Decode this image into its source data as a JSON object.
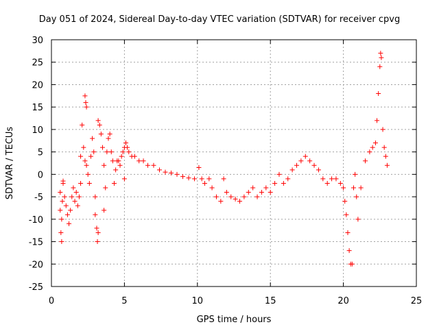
{
  "chart_data": {
    "type": "scatter",
    "title": "Day 051 of 2024, Sidereal Day-to-day VTEC variation (SDTVAR) for receiver cpvg",
    "xlabel": "GPS time / hours",
    "ylabel": "SDTVAR / TECUs",
    "xlim": [
      0,
      25
    ],
    "ylim": [
      -25,
      30
    ],
    "xticks": [
      0,
      5,
      10,
      15,
      20,
      25
    ],
    "yticks": [
      -25,
      -20,
      -15,
      -10,
      -5,
      0,
      5,
      10,
      15,
      20,
      25,
      30
    ],
    "grid": true,
    "marker": "+",
    "color": "#ff0000",
    "series": [
      {
        "name": "SDTVAR cpvg",
        "points": [
          [
            0.6,
            -4
          ],
          [
            0.6,
            -8
          ],
          [
            0.65,
            -13
          ],
          [
            0.7,
            -15
          ],
          [
            0.7,
            -10
          ],
          [
            0.75,
            -6
          ],
          [
            0.8,
            -2
          ],
          [
            0.8,
            -1.5
          ],
          [
            0.9,
            -5
          ],
          [
            1.0,
            -7
          ],
          [
            1.1,
            -9
          ],
          [
            1.2,
            -11
          ],
          [
            1.3,
            -8
          ],
          [
            1.4,
            -5
          ],
          [
            1.5,
            -3
          ],
          [
            1.6,
            -6
          ],
          [
            1.7,
            -4
          ],
          [
            1.8,
            -7
          ],
          [
            1.9,
            -5
          ],
          [
            2.0,
            -2
          ],
          [
            2.0,
            4
          ],
          [
            2.1,
            11
          ],
          [
            2.2,
            6
          ],
          [
            2.3,
            3
          ],
          [
            2.3,
            17.5
          ],
          [
            2.35,
            16
          ],
          [
            2.4,
            15
          ],
          [
            2.4,
            2
          ],
          [
            2.5,
            0
          ],
          [
            2.6,
            -2
          ],
          [
            2.7,
            4
          ],
          [
            2.8,
            8
          ],
          [
            2.9,
            5
          ],
          [
            3.0,
            -5
          ],
          [
            3.0,
            -9
          ],
          [
            3.1,
            -12
          ],
          [
            3.15,
            -15
          ],
          [
            3.2,
            -13
          ],
          [
            3.2,
            12
          ],
          [
            3.3,
            11
          ],
          [
            3.4,
            9
          ],
          [
            3.5,
            6
          ],
          [
            3.6,
            2
          ],
          [
            3.6,
            -8
          ],
          [
            3.7,
            -3
          ],
          [
            3.8,
            5
          ],
          [
            3.9,
            8
          ],
          [
            4.0,
            9
          ],
          [
            4.1,
            5
          ],
          [
            4.2,
            3
          ],
          [
            4.3,
            -2
          ],
          [
            4.4,
            1
          ],
          [
            4.5,
            3
          ],
          [
            4.6,
            3
          ],
          [
            4.7,
            2
          ],
          [
            4.8,
            4
          ],
          [
            4.9,
            5
          ],
          [
            5.0,
            6
          ],
          [
            5.0,
            -1
          ],
          [
            5.1,
            7
          ],
          [
            5.2,
            6
          ],
          [
            5.3,
            5
          ],
          [
            5.5,
            4
          ],
          [
            5.7,
            4
          ],
          [
            6.0,
            3
          ],
          [
            6.3,
            3
          ],
          [
            6.6,
            2
          ],
          [
            7.0,
            2
          ],
          [
            7.4,
            1
          ],
          [
            7.8,
            0.5
          ],
          [
            8.2,
            0.3
          ],
          [
            8.6,
            0
          ],
          [
            9.0,
            -0.5
          ],
          [
            9.4,
            -0.8
          ],
          [
            9.8,
            -1
          ],
          [
            10.1,
            1.5
          ],
          [
            10.3,
            -1
          ],
          [
            10.5,
            -2
          ],
          [
            10.8,
            -1
          ],
          [
            11.0,
            -3
          ],
          [
            11.3,
            -5
          ],
          [
            11.6,
            -6
          ],
          [
            11.8,
            -1
          ],
          [
            12.0,
            -4
          ],
          [
            12.3,
            -5
          ],
          [
            12.6,
            -5.5
          ],
          [
            12.9,
            -6
          ],
          [
            13.2,
            -5
          ],
          [
            13.5,
            -4
          ],
          [
            13.8,
            -3
          ],
          [
            14.1,
            -5
          ],
          [
            14.4,
            -4
          ],
          [
            14.7,
            -3
          ],
          [
            15.0,
            -4
          ],
          [
            15.3,
            -2
          ],
          [
            15.6,
            0
          ],
          [
            15.9,
            -2
          ],
          [
            16.2,
            -1
          ],
          [
            16.5,
            1
          ],
          [
            16.8,
            2
          ],
          [
            17.1,
            3
          ],
          [
            17.4,
            4
          ],
          [
            17.7,
            3
          ],
          [
            18.0,
            2
          ],
          [
            18.3,
            1
          ],
          [
            18.6,
            -1
          ],
          [
            18.9,
            -2
          ],
          [
            19.2,
            -1
          ],
          [
            19.5,
            -1
          ],
          [
            19.8,
            -2
          ],
          [
            20.0,
            -3
          ],
          [
            20.1,
            -6
          ],
          [
            20.2,
            -9
          ],
          [
            20.3,
            -13
          ],
          [
            20.4,
            -17
          ],
          [
            20.5,
            -20
          ],
          [
            20.6,
            -20
          ],
          [
            20.7,
            -3
          ],
          [
            20.8,
            0
          ],
          [
            20.9,
            -5
          ],
          [
            21.0,
            -10
          ],
          [
            21.2,
            -3
          ],
          [
            21.5,
            3
          ],
          [
            21.8,
            5
          ],
          [
            22.0,
            6
          ],
          [
            22.2,
            7
          ],
          [
            22.3,
            12
          ],
          [
            22.4,
            18
          ],
          [
            22.5,
            24
          ],
          [
            22.55,
            27
          ],
          [
            22.6,
            26
          ],
          [
            22.7,
            10
          ],
          [
            22.8,
            6
          ],
          [
            22.9,
            4
          ],
          [
            23.0,
            2
          ]
        ]
      }
    ]
  }
}
